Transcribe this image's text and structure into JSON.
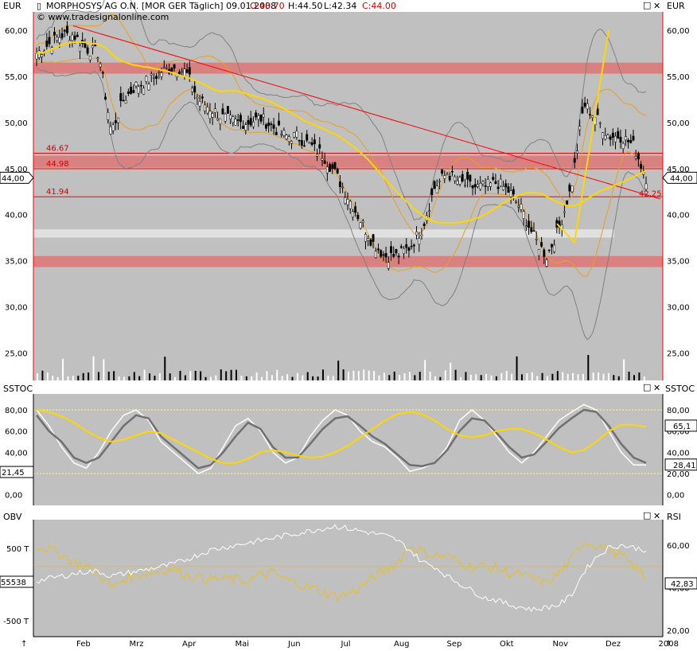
{
  "header": {
    "currency_left": "EUR",
    "currency_right": "EUR",
    "symbol_marker": "▯",
    "title": "MORPHOSYS AG O.N. [MOR GER  Täglich] 09.01.2008",
    "ohlc_open": "O:43.70",
    "ohlc_high": "H:44.50",
    "ohlc_low": "L:42.34",
    "ohlc_close": "C:44.00",
    "copyright": "© www.tradesignalonline.com"
  },
  "window_controls": {
    "restore_icon": "□",
    "close_icon": "✕"
  },
  "colors": {
    "background": "#c0c0c0",
    "price_axis": "#ff0000",
    "trendline": "#ff0000",
    "zone": "#d98080",
    "neutral_zone": "#e0e0e0",
    "moving_average": "#ffd700",
    "bollinger": "#808080",
    "envelope": "#e8a020",
    "candles": "#000000",
    "stoch_fast": "#ffffff",
    "stoch_slow": "#707070",
    "obv": "#ffffff",
    "rsi": "#e8c020"
  },
  "chart_data": [
    {
      "panel": "price",
      "type": "candlestick",
      "x_labels": [
        "Feb",
        "Mrz",
        "Apr",
        "Mai",
        "Jun",
        "Jul",
        "Aug",
        "Sep",
        "Okt",
        "Nov",
        "Dez",
        "2008"
      ],
      "y_ticks": [
        "60,00",
        "55,00",
        "50,00",
        "45,00",
        "40,00",
        "35,00",
        "30,00",
        "25,00"
      ],
      "y_range": [
        22,
        62
      ],
      "last_price_label": "44,00",
      "horizontal_levels": [
        {
          "value": 46.67,
          "label": "46.67"
        },
        {
          "value": 44.98,
          "label": "44.98"
        },
        {
          "value": 41.94,
          "label": "41.94"
        }
      ],
      "trendline_label": "42.25",
      "zones": [
        {
          "from": 55.3,
          "to": 56.5
        },
        {
          "from": 45.1,
          "to": 46.4
        },
        {
          "from": 34.3,
          "to": 35.5
        }
      ],
      "neutral_zone": {
        "from": 37.5,
        "to": 38.4
      },
      "close_series": [
        57.5,
        58.5,
        59.5,
        59.5,
        58.0,
        57.5,
        49.0,
        52.5,
        54.0,
        54.5,
        55.5,
        56.0,
        55.5,
        52.5,
        51.5,
        50.5,
        50.0,
        50.0,
        50.5,
        49.5,
        48.5,
        48.5,
        47.5,
        46.5,
        44.5,
        42.0,
        39.5,
        37.0,
        35.5,
        35.5,
        36.5,
        38.5,
        43.0,
        44.5,
        43.5,
        43.0,
        43.0,
        43.5,
        42.5,
        40.5,
        37.5,
        35.5,
        38.5,
        43.0,
        52.0,
        50.5,
        48.5,
        48.5,
        47.5,
        44.0
      ],
      "volume_note": "daily volume bars"
    },
    {
      "panel": "stochastic",
      "type": "line",
      "title": "SSTOC",
      "title_right": "SSTOC",
      "y_ticks": [
        "80,00",
        "60,00",
        "40,00",
        "20,00",
        "0,00"
      ],
      "y_range": [
        -10,
        95
      ],
      "levels": [
        80,
        20
      ],
      "right_labels": [
        "65,1",
        "28,41"
      ],
      "left_labels": [
        "21,45"
      ],
      "series": [
        {
          "values": [
            80,
            65,
            45,
            30,
            25,
            40,
            60,
            75,
            80,
            70,
            50,
            40,
            30,
            20,
            25,
            45,
            65,
            72,
            60,
            40,
            30,
            35,
            55,
            70,
            80,
            75,
            60,
            50,
            45,
            35,
            22,
            25,
            30,
            45,
            70,
            80,
            70,
            55,
            40,
            30,
            40,
            55,
            70,
            78,
            85,
            80,
            60,
            40,
            28,
            28
          ]
        },
        {
          "values": [
            75,
            60,
            50,
            35,
            30,
            35,
            50,
            65,
            75,
            72,
            55,
            45,
            35,
            25,
            28,
            40,
            55,
            68,
            62,
            45,
            35,
            35,
            48,
            62,
            72,
            74,
            65,
            55,
            48,
            38,
            28,
            27,
            30,
            42,
            60,
            72,
            70,
            58,
            45,
            35,
            38,
            50,
            63,
            72,
            80,
            78,
            65,
            48,
            35,
            30
          ]
        },
        {
          "values": [
            80,
            78,
            74,
            68,
            60,
            54,
            50,
            52,
            56,
            60,
            58,
            52,
            46,
            40,
            34,
            30,
            30,
            34,
            40,
            42,
            40,
            37,
            35,
            36,
            40,
            46,
            54,
            62,
            70,
            76,
            78,
            76,
            70,
            62,
            56,
            54,
            56,
            60,
            62,
            62,
            58,
            52,
            45,
            40,
            42,
            50,
            60,
            66,
            66,
            64
          ]
        }
      ]
    },
    {
      "panel": "obv_rsi",
      "type": "line",
      "title_left": "OBV",
      "title_right": "RSI",
      "left_ticks": [
        "500 T",
        "-500 T"
      ],
      "right_ticks": [
        "60,00",
        "40,00",
        "20,00"
      ],
      "right_range": [
        17,
        72
      ],
      "rsi_level": 50,
      "left_value_label": "55538",
      "right_value_label": "42,83",
      "series": [
        {
          "name": "OBV",
          "values": [
            -2,
            -1.5,
            -1,
            -0.5,
            0,
            0,
            -1,
            -0.5,
            0,
            0.5,
            1,
            1.5,
            2.5,
            3.5,
            4.5,
            5,
            5.5,
            6,
            6.5,
            7,
            7.5,
            8,
            8.5,
            9,
            9.5,
            9,
            8.5,
            8,
            7.5,
            6.5,
            4.5,
            2,
            1,
            -1,
            -2.5,
            -4,
            -5.5,
            -6,
            -7,
            -7.5,
            -8,
            -7.5,
            -7,
            -5,
            0,
            3,
            5,
            5.5,
            5,
            4.5
          ]
        },
        {
          "name": "RSI",
          "values": [
            60,
            58,
            56,
            52,
            50,
            47,
            40,
            44,
            46,
            47,
            48,
            49,
            46,
            45,
            44,
            44,
            44,
            43,
            46,
            47,
            44,
            42,
            40,
            38,
            36,
            37,
            40,
            45,
            48,
            52,
            60,
            57,
            55,
            55,
            52,
            50,
            50,
            49,
            47,
            46,
            44,
            42,
            47,
            53,
            62,
            60,
            58,
            55,
            50,
            45
          ]
        }
      ]
    }
  ]
}
